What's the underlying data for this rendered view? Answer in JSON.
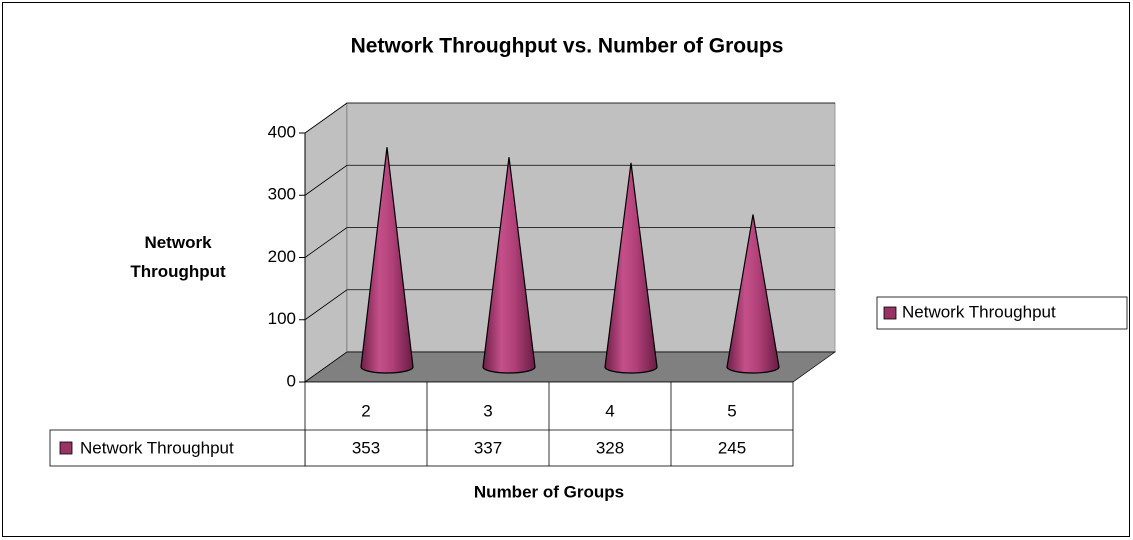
{
  "chart_data": {
    "type": "cone3d",
    "title": "Network Throughput vs. Number of Groups",
    "x_label": "Number of Groups",
    "y_label": "Network Throughput",
    "categories": [
      "2",
      "3",
      "4",
      "5"
    ],
    "series": [
      {
        "name": "Network Throughput",
        "color": "#993366",
        "values": [
          353,
          337,
          328,
          245
        ]
      }
    ],
    "ylim": [
      0,
      400
    ],
    "yticks": [
      0,
      100,
      200,
      300,
      400
    ],
    "grid": true,
    "legend": "right",
    "data_table": true
  }
}
